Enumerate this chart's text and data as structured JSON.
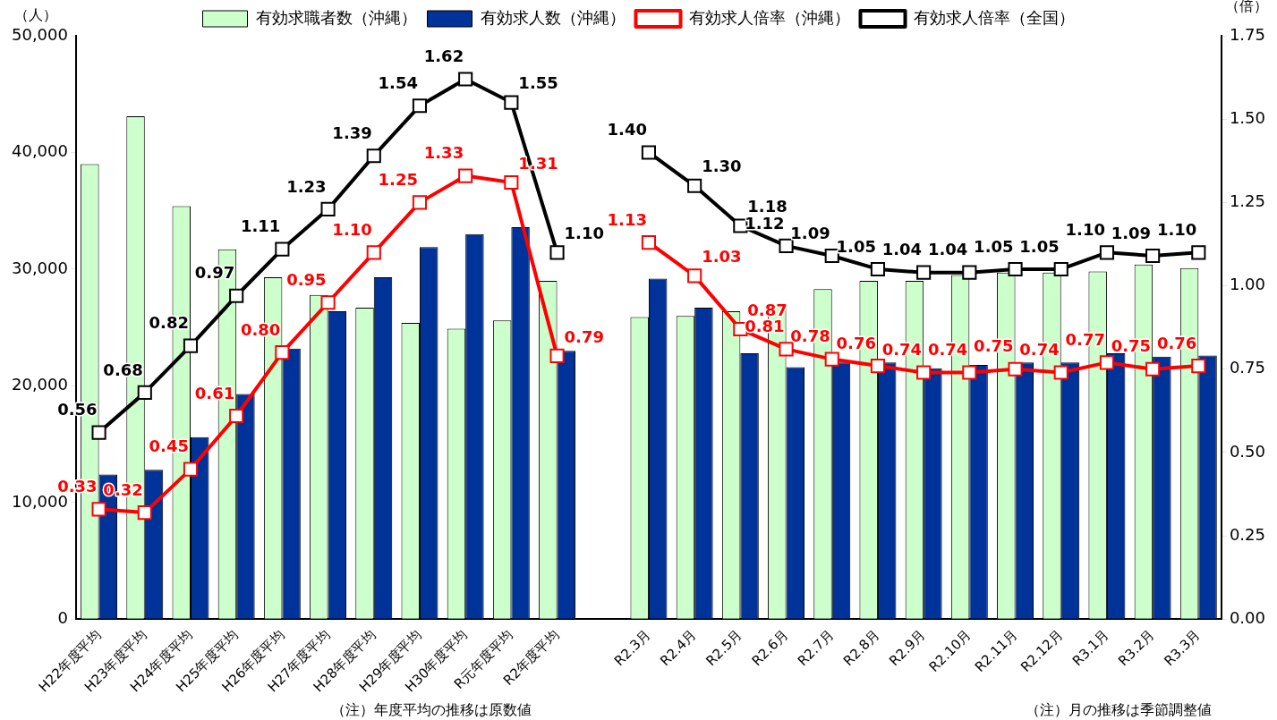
{
  "chart_data": {
    "type": "bar",
    "categories": [
      "H22年度平均",
      "H23年度平均",
      "H24年度平均",
      "H25年度平均",
      "H26年度平均",
      "H27年度平均",
      "H28年度平均",
      "H29年度平均",
      "H30年度平均",
      "R元年度平均",
      "R2年度平均",
      null,
      "R2.3月",
      "R2.4月",
      "R2.5月",
      "R2.6月",
      "R2.7月",
      "R2.8月",
      "R2.9月",
      "R2.10月",
      "R2.11月",
      "R2.12月",
      "R3.1月",
      "R3.2月",
      "R3.3月"
    ],
    "series": [
      {
        "name": "有効求職者数（沖縄）",
        "color": "#ccffcc",
        "values": [
          39000,
          43100,
          35400,
          31700,
          29300,
          27800,
          26700,
          25400,
          24900,
          25600,
          29000,
          null,
          25900,
          26000,
          26400,
          26900,
          28300,
          29000,
          29000,
          29500,
          29700,
          29700,
          29800,
          30400,
          30100
        ]
      },
      {
        "name": "有効求人数（沖縄）",
        "color": "#003399",
        "values": [
          12400,
          12800,
          15600,
          19300,
          23200,
          26400,
          29300,
          31900,
          33000,
          33600,
          23000,
          null,
          29200,
          26700,
          22800,
          21600,
          22000,
          22000,
          21500,
          21800,
          22000,
          22000,
          22800,
          22500,
          22600
        ]
      },
      {
        "name": "有効求人倍率（沖縄）",
        "type": "line",
        "axis": "y2",
        "color": "#ff0000",
        "values": [
          0.33,
          0.32,
          0.45,
          0.61,
          0.8,
          0.95,
          1.1,
          1.25,
          1.33,
          1.31,
          0.79,
          null,
          1.13,
          1.03,
          0.87,
          0.81,
          0.78,
          0.76,
          0.74,
          0.74,
          0.75,
          0.74,
          0.77,
          0.75,
          0.76
        ],
        "value_labels": [
          "0.33",
          "0.32",
          "0.45",
          "0.61",
          "0.80",
          "0.95",
          "1.10",
          "1.25",
          "1.33",
          "1.31",
          "0.79",
          null,
          "1.13",
          "1.03",
          "0.87",
          "0.81",
          "0.78",
          "0.76",
          "0.74",
          "0.74",
          "0.75",
          "0.74",
          "0.77",
          "0.75",
          "0.76"
        ]
      },
      {
        "name": "有効求人倍率（全国）",
        "type": "line",
        "axis": "y2",
        "color": "#000000",
        "values": [
          0.56,
          0.68,
          0.82,
          0.97,
          1.11,
          1.23,
          1.39,
          1.54,
          1.62,
          1.55,
          1.1,
          null,
          1.4,
          1.3,
          1.18,
          1.12,
          1.09,
          1.05,
          1.04,
          1.04,
          1.05,
          1.05,
          1.1,
          1.09,
          1.1
        ],
        "value_labels": [
          "0.56",
          "0.68",
          "0.82",
          "0.97",
          "1.11",
          "1.23",
          "1.39",
          "1.54",
          "1.62",
          "1.55",
          "1.10",
          null,
          "1.40",
          "1.30",
          "1.18",
          "1.12",
          "1.09",
          "1.05",
          "1.04",
          "1.04",
          "1.05",
          "1.05",
          "1.10",
          "1.09",
          "1.10"
        ]
      }
    ],
    "ylabel": "（人）",
    "y2label": "（倍）",
    "ylim": [
      0,
      50000
    ],
    "yticks": [
      {
        "value": 0,
        "label": "0"
      },
      {
        "value": 10000,
        "label": "10,000"
      },
      {
        "value": 20000,
        "label": "20,000"
      },
      {
        "value": 30000,
        "label": "30,000"
      },
      {
        "value": 40000,
        "label": "40,000"
      },
      {
        "value": 50000,
        "label": "50,000"
      }
    ],
    "y2lim": [
      0,
      1.75
    ],
    "y2ticks": [
      {
        "value": 0,
        "label": "0.00"
      },
      {
        "value": 0.25,
        "label": "0.25"
      },
      {
        "value": 0.5,
        "label": "0.50"
      },
      {
        "value": 0.75,
        "label": "0.75"
      },
      {
        "value": 1,
        "label": "1.00"
      },
      {
        "value": 1.25,
        "label": "1.25"
      },
      {
        "value": 1.5,
        "label": "1.50"
      },
      {
        "value": 1.75,
        "label": "1.75"
      }
    ],
    "marker": "square",
    "legend": "top",
    "grid": false,
    "annotations": [
      "（注）年度平均の推移は原数値",
      "（注）月の推移は季節調整値"
    ]
  }
}
